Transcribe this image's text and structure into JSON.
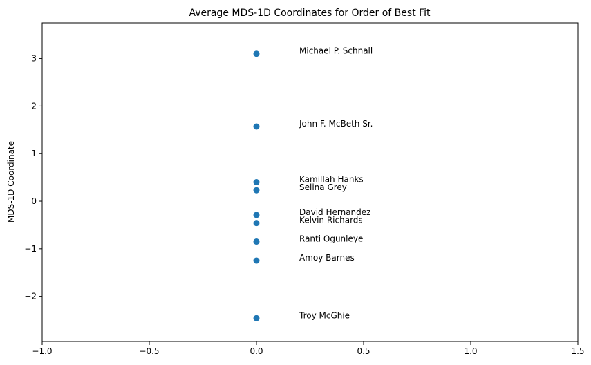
{
  "chart_data": {
    "type": "scatter",
    "title": "Average MDS-1D Coordinates for Order of Best Fit",
    "xlabel": "",
    "ylabel": "MDS-1D Coordinate",
    "xlim": [
      -1.0,
      1.5
    ],
    "ylim": [
      -2.95,
      3.75
    ],
    "xticks": [
      -1.0,
      -0.5,
      0.0,
      0.5,
      1.0,
      1.5
    ],
    "xtick_labels": [
      "−1.0",
      "−0.5",
      "0.0",
      "0.5",
      "1.0",
      "1.5"
    ],
    "yticks": [
      -2,
      -1,
      0,
      1,
      2,
      3
    ],
    "ytick_labels": [
      "−2",
      "−1",
      "0",
      "1",
      "2",
      "3"
    ],
    "grid": false,
    "marker_color": "#1f77b4",
    "points": [
      {
        "x": 0.0,
        "y": 3.1,
        "label": "Michael P. Schnall"
      },
      {
        "x": 0.0,
        "y": 1.57,
        "label": "John F. McBeth Sr."
      },
      {
        "x": 0.0,
        "y": 0.4,
        "label": "Kamillah Hanks"
      },
      {
        "x": 0.0,
        "y": 0.23,
        "label": "Selina Grey"
      },
      {
        "x": 0.0,
        "y": -0.29,
        "label": "David Hernandez"
      },
      {
        "x": 0.0,
        "y": -0.46,
        "label": "Kelvin Richards"
      },
      {
        "x": 0.0,
        "y": -0.85,
        "label": "Ranti Ogunleye"
      },
      {
        "x": 0.0,
        "y": -1.25,
        "label": "Amoy Barnes"
      },
      {
        "x": 0.0,
        "y": -2.46,
        "label": "Troy McGhie"
      }
    ],
    "annotation_x": 0.2
  }
}
